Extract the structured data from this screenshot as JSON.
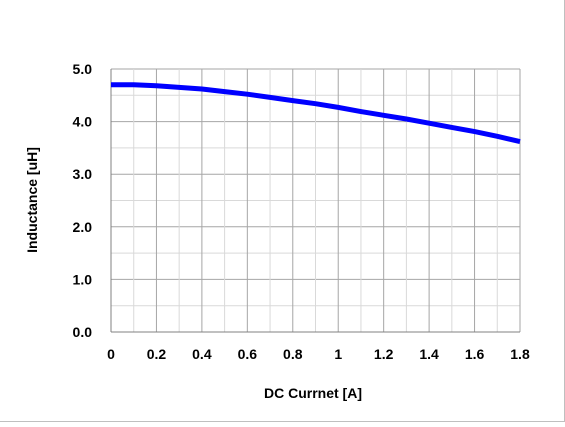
{
  "chart_data": {
    "type": "line",
    "xlabel": "DC Currnet [A]",
    "ylabel": "Inductance [uH]",
    "xlim": [
      0,
      1.8
    ],
    "ylim": [
      0,
      5.0
    ],
    "x_ticks": [
      0,
      0.1,
      0.2,
      0.3,
      0.4,
      0.5,
      0.6,
      0.7,
      0.8,
      0.9,
      1.0,
      1.1,
      1.2,
      1.3,
      1.4,
      1.5,
      1.6,
      1.7,
      1.8
    ],
    "x_tick_labels": [
      "0",
      "0.2",
      "0.4",
      "0.6",
      "0.8",
      "1",
      "1.2",
      "1.4",
      "1.6",
      "1.8"
    ],
    "x_tick_label_values": [
      0,
      0.2,
      0.4,
      0.6,
      0.8,
      1.0,
      1.2,
      1.4,
      1.6,
      1.8
    ],
    "y_ticks": [
      0,
      0.5,
      1.0,
      1.5,
      2.0,
      2.5,
      3.0,
      3.5,
      4.0,
      4.5,
      5.0
    ],
    "y_tick_labels": [
      "0.0",
      "1.0",
      "2.0",
      "3.0",
      "4.0",
      "5.0"
    ],
    "y_tick_label_values": [
      0,
      1.0,
      2.0,
      3.0,
      4.0,
      5.0
    ],
    "grid": true,
    "legend": "none",
    "series": [
      {
        "color": "#0000ff",
        "x": [
          0,
          0.1,
          0.2,
          0.3,
          0.4,
          0.5,
          0.6,
          0.7,
          0.8,
          0.9,
          1.0,
          1.1,
          1.2,
          1.3,
          1.4,
          1.5,
          1.6,
          1.7,
          1.8
        ],
        "y": [
          4.7,
          4.7,
          4.68,
          4.65,
          4.62,
          4.57,
          4.52,
          4.46,
          4.4,
          4.34,
          4.27,
          4.19,
          4.12,
          4.05,
          3.97,
          3.89,
          3.81,
          3.72,
          3.62
        ]
      }
    ],
    "colors": {
      "grid_major": "#a6a6a6",
      "grid_minor": "#d9d9d9",
      "axis": "#808080"
    }
  }
}
